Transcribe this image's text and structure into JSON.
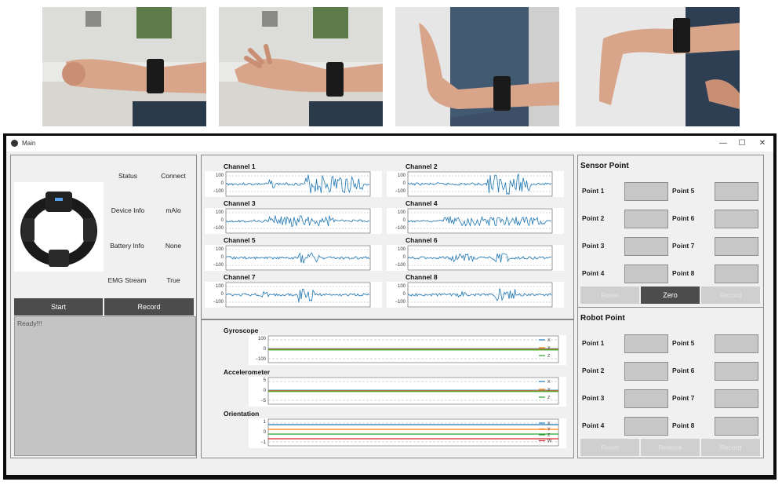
{
  "window": {
    "title": "Main",
    "min": "—",
    "max": "☐",
    "close": "✕"
  },
  "device": {
    "rows": [
      {
        "label": "Status",
        "value": "Connect"
      },
      {
        "label": "Device Info",
        "value": "mAlo"
      },
      {
        "label": "Battery Info",
        "value": "None"
      },
      {
        "label": "EMG Stream",
        "value": "True"
      }
    ],
    "start_label": "Start",
    "record_label": "Record",
    "log_text": "Ready!!!"
  },
  "emg": {
    "channels": [
      "Channel 1",
      "Channel 2",
      "Channel 3",
      "Channel 4",
      "Channel 5",
      "Channel 6",
      "Channel 7",
      "Channel 8"
    ],
    "ticks": [
      "100",
      "0",
      "−100"
    ]
  },
  "imu": {
    "plots": [
      {
        "title": "Gyroscope",
        "ticks": [
          "100",
          "0",
          "−100"
        ],
        "legend": [
          "X",
          "Y",
          "Z"
        ]
      },
      {
        "title": "Accelerometer",
        "ticks": [
          "5",
          "0",
          "−5"
        ],
        "legend": [
          "X",
          "Y",
          "Z"
        ]
      },
      {
        "title": "Orientation",
        "ticks": [
          "1",
          "0",
          "−1"
        ],
        "legend": [
          "X",
          "Y",
          "Z",
          "W"
        ]
      }
    ]
  },
  "sensor": {
    "title": "Sensor Point",
    "points": [
      "Point 1",
      "Point 2",
      "Point 3",
      "Point 4",
      "Point 5",
      "Point 6",
      "Point 7",
      "Point 8"
    ],
    "buttons": [
      "Reset",
      "Zero",
      "Record"
    ]
  },
  "robot": {
    "title": "Robot Point",
    "points": [
      "Point 1",
      "Point 2",
      "Point 3",
      "Point 4",
      "Point 5",
      "Point 6",
      "Point 7",
      "Point 8"
    ],
    "buttons": [
      "Reset",
      "Restore",
      "Record"
    ]
  },
  "colors": {
    "series_blue": "#1f77b4",
    "series_orange": "#ff7f0e",
    "series_green": "#2ca02c",
    "series_red": "#d62728",
    "dark_button": "#4c4c4c"
  }
}
